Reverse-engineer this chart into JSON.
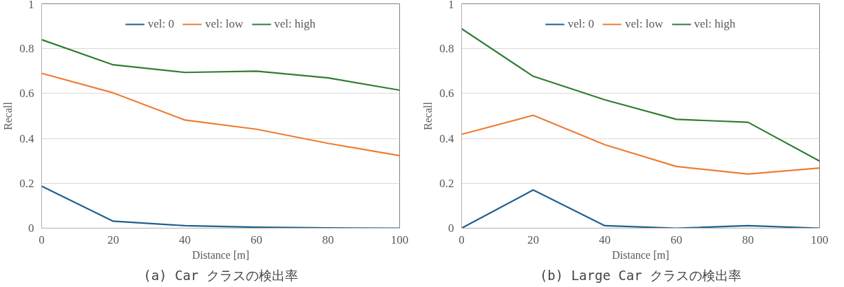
{
  "chart_data": [
    {
      "type": "line",
      "title": "(a) Car クラスの検出率",
      "xlabel": "Distance [m]",
      "ylabel": "Recall",
      "x": [
        0,
        20,
        40,
        60,
        80,
        100
      ],
      "xlim": [
        0,
        100
      ],
      "xticks": [
        0,
        20,
        40,
        60,
        80,
        100
      ],
      "ylim": [
        0,
        1
      ],
      "yticks": [
        0,
        0.2,
        0.4,
        0.6,
        0.8,
        1
      ],
      "grid": "y",
      "legend": "top",
      "line_style": "solid",
      "series": [
        {
          "name": "vel: 0",
          "color": "#1f5f8b",
          "values": [
            0.187,
            0.031,
            0.011,
            0.004,
            0.001,
            0
          ]
        },
        {
          "name": "vel: low",
          "color": "#ed7d31",
          "values": [
            0.69,
            0.603,
            0.482,
            0.441,
            0.378,
            0.323
          ]
        },
        {
          "name": "vel: high",
          "color": "#2e7d32",
          "values": [
            0.84,
            0.728,
            0.694,
            0.7,
            0.67,
            0.615
          ]
        }
      ]
    },
    {
      "type": "line",
      "title": "(b) Large Car クラスの検出率",
      "xlabel": "Distance [m]",
      "ylabel": "Recall",
      "x": [
        0,
        20,
        40,
        60,
        80,
        100
      ],
      "xlim": [
        0,
        100
      ],
      "xticks": [
        0,
        20,
        40,
        60,
        80,
        100
      ],
      "ylim": [
        0,
        1
      ],
      "yticks": [
        0,
        0.2,
        0.4,
        0.6,
        0.8,
        1
      ],
      "grid": "y",
      "legend": "top",
      "line_style": "solid",
      "series": [
        {
          "name": "vel: 0",
          "color": "#1f5f8b",
          "values": [
            0,
            0.17,
            0.011,
            0,
            0.011,
            0
          ]
        },
        {
          "name": "vel: low",
          "color": "#ed7d31",
          "values": [
            0.418,
            0.503,
            0.372,
            0.275,
            0.241,
            0.268
          ]
        },
        {
          "name": "vel: high",
          "color": "#2e7d32",
          "values": [
            0.889,
            0.677,
            0.572,
            0.485,
            0.472,
            0.299
          ]
        }
      ]
    }
  ]
}
